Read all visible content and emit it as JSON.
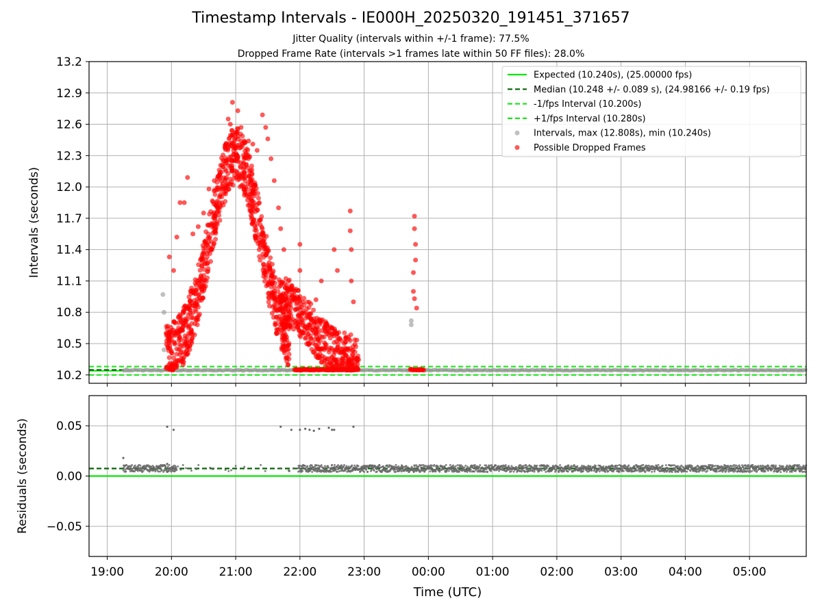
{
  "titles": {
    "main": "Timestamp Intervals - IE000H_20250320_191451_371657",
    "line1": "Jitter Quality (intervals within +/-1 frame): 77.5%",
    "line2": "Dropped Frame Rate (intervals >1 frames late within 50 FF files): 28.0%"
  },
  "chart_data": [
    {
      "type": "scatter",
      "panel": "top",
      "ylabel": "Intervals (seconds)",
      "xlabel": "",
      "x_ticks": [
        "19:00",
        "20:00",
        "21:00",
        "22:00",
        "23:00",
        "00:00",
        "01:00",
        "02:00",
        "03:00",
        "04:00",
        "05:00"
      ],
      "y_ticks": [
        "10.2",
        "10.5",
        "10.8",
        "11.1",
        "11.4",
        "11.7",
        "12.0",
        "12.3",
        "12.6",
        "12.9",
        "13.2"
      ],
      "xlim": [
        "18:43",
        "05:53"
      ],
      "ylim": [
        10.12,
        13.2
      ],
      "grid": true,
      "legend_position": "top-right",
      "lines": [
        {
          "name": "Expected (10.240s), (25.00000 fps)",
          "y": 10.24,
          "color": "#00e600",
          "style": "solid"
        },
        {
          "name": "Median (10.248 +/- 0.089 s), (24.98166 +/- 0.19 fps)",
          "y": 10.248,
          "color": "#006400",
          "style": "dashed"
        },
        {
          "name": "-1/fps Interval (10.200s)",
          "y": 10.2,
          "color": "#19e619",
          "style": "dashed"
        },
        {
          "name": "+1/fps Interval (10.280s)",
          "y": 10.28,
          "color": "#19e619",
          "style": "dashed"
        }
      ],
      "series": [
        {
          "name": "Intervals, max (12.808s), min (10.240s)",
          "color": "#9e9e9e",
          "points": [
            [
              "19:52",
              10.97
            ],
            [
              "19:53",
              10.8
            ],
            [
              "19:53",
              10.44
            ],
            [
              "23:44",
              10.72
            ],
            [
              "23:44",
              10.68
            ],
            [
              "19:18",
              10.25
            ],
            [
              "21:40",
              10.25
            ]
          ]
        },
        {
          "name": "Possible Dropped Frames",
          "color": "#ff0000",
          "points": [
            [
              "19:55",
              10.6
            ],
            [
              "19:58",
              11.33
            ],
            [
              "20:02",
              11.2
            ],
            [
              "20:05",
              11.52
            ],
            [
              "20:08",
              11.85
            ],
            [
              "20:12",
              11.85
            ],
            [
              "20:15",
              12.09
            ],
            [
              "20:20",
              11.55
            ],
            [
              "20:25",
              11.62
            ],
            [
              "20:30",
              11.75
            ],
            [
              "20:35",
              11.98
            ],
            [
              "20:40",
              12.06
            ],
            [
              "20:45",
              12.12
            ],
            [
              "20:50",
              12.38
            ],
            [
              "20:53",
              12.65
            ],
            [
              "20:55",
              12.6
            ],
            [
              "20:57",
              12.81
            ],
            [
              "21:00",
              12.52
            ],
            [
              "21:02",
              12.73
            ],
            [
              "21:05",
              12.57
            ],
            [
              "21:08",
              12.44
            ],
            [
              "21:12",
              12.44
            ],
            [
              "21:16",
              12.41
            ],
            [
              "21:20",
              12.35
            ],
            [
              "21:25",
              12.69
            ],
            [
              "21:28",
              12.57
            ],
            [
              "21:30",
              12.46
            ],
            [
              "21:33",
              12.27
            ],
            [
              "21:36",
              12.06
            ],
            [
              "21:40",
              11.8
            ],
            [
              "21:42",
              11.6
            ],
            [
              "21:45",
              11.4
            ],
            [
              "22:00",
              11.45
            ],
            [
              "22:00",
              11.2
            ],
            [
              "22:00",
              10.95
            ],
            [
              "22:15",
              10.92
            ],
            [
              "22:20",
              11.1
            ],
            [
              "22:32",
              11.4
            ],
            [
              "22:35",
              11.2
            ],
            [
              "22:47",
              11.77
            ],
            [
              "22:47",
              11.58
            ],
            [
              "22:48",
              11.4
            ],
            [
              "22:48",
              11.1
            ],
            [
              "22:50",
              10.9
            ],
            [
              "23:47",
              11.72
            ],
            [
              "23:47",
              11.6
            ],
            [
              "23:48",
              11.45
            ],
            [
              "23:48",
              11.3
            ],
            [
              "23:46",
              11.18
            ],
            [
              "23:47",
              10.93
            ],
            [
              "23:49",
              10.84
            ],
            [
              "23:46",
              11.0
            ]
          ]
        }
      ]
    },
    {
      "type": "scatter",
      "panel": "bottom",
      "xlabel": "Time (UTC)",
      "ylabel": "Residuals (seconds)",
      "x_ticks": [
        "19:00",
        "20:00",
        "21:00",
        "22:00",
        "23:00",
        "00:00",
        "01:00",
        "02:00",
        "03:00",
        "04:00",
        "05:00"
      ],
      "y_ticks": [
        "−0.05",
        "0.00",
        "0.05"
      ],
      "xlim": [
        "18:43",
        "05:53"
      ],
      "ylim": [
        -0.08,
        0.08
      ],
      "grid": true,
      "lines": [
        {
          "y": 0.0,
          "color": "#00e600",
          "style": "solid"
        },
        {
          "y": 0.0075,
          "color": "#006400",
          "style": "dashed"
        }
      ],
      "series": [
        {
          "color": "#666666",
          "points": [
            [
              "19:15",
              0.018
            ],
            [
              "19:56",
              0.049
            ],
            [
              "20:02",
              0.046
            ],
            [
              "19:56",
              0.012
            ],
            [
              "21:42",
              0.049
            ],
            [
              "21:52",
              0.046
            ],
            [
              "22:00",
              0.046
            ],
            [
              "22:05",
              0.047
            ],
            [
              "22:09",
              0.046
            ],
            [
              "22:13",
              0.045
            ],
            [
              "22:18",
              0.047
            ],
            [
              "22:27",
              0.048
            ],
            [
              "22:30",
              0.046
            ],
            [
              "22:32",
              0.046
            ],
            [
              "22:50",
              0.049
            ],
            [
              "21:50",
              0.005
            ],
            [
              "20:03",
              0.007
            ]
          ]
        }
      ]
    }
  ]
}
